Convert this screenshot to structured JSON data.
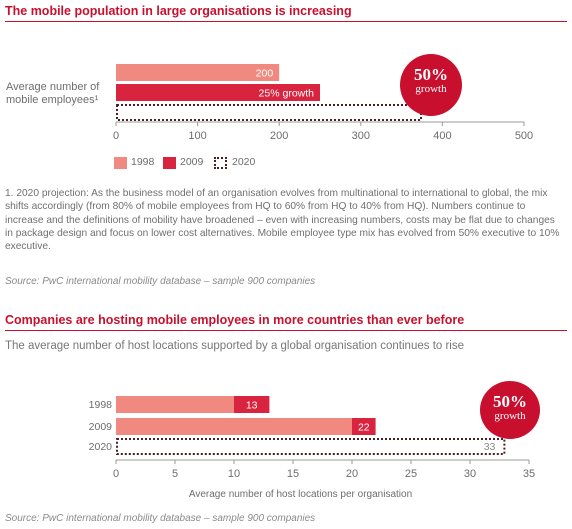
{
  "section1": {
    "heading": "The mobile population in large organisations is increasing",
    "ylabel": "Average number of mobile employees¹",
    "badge_big": "50%",
    "badge_small": "growth",
    "footnote": "1. 2020 projection: As the business model of an organisation evolves from multinational to international to global, the mix shifts accordingly (from 80% of mobile employees from HQ to 60% from HQ to 40% from HQ). Numbers continue to increase and the definitions of mobility have broadened – even with increasing numbers, costs may be flat due to changes in package design and focus on lower cost alternatives. Mobile employee type mix has evolved from 50% executive to 10% executive.",
    "source": "Source: PwC international mobility database – sample 900 companies"
  },
  "section2": {
    "heading": "Companies are hosting mobile employees in more countries than ever before",
    "subtitle": "The average number of host locations supported by a global organisation continues to rise",
    "badge_big": "50%",
    "badge_small": "growth",
    "source": "Source: PwC international mobility database – sample 900 companies"
  },
  "colors": {
    "accent": "#c8102e",
    "y1998": "#f08a80",
    "y2009": "#d9243f",
    "y2020_border": "#4a2020"
  },
  "chart_data": [
    {
      "type": "bar",
      "orientation": "horizontal",
      "series": [
        {
          "name": "1998",
          "value": 200,
          "label": "200"
        },
        {
          "name": "2009",
          "value": 250,
          "label": "25% growth"
        },
        {
          "name": "2020",
          "value": 375,
          "label": ""
        }
      ],
      "xlim": [
        0,
        500
      ],
      "xticks": [
        "0",
        "100",
        "200",
        "300",
        "400",
        "500"
      ],
      "legend": [
        "1998",
        "2009",
        "2020"
      ],
      "legend_position": "bottom-left"
    },
    {
      "type": "bar",
      "orientation": "horizontal",
      "bars": [
        {
          "category": "1998",
          "segments": [
            {
              "value": 10,
              "label": ""
            },
            {
              "value": 3,
              "label": "13"
            }
          ]
        },
        {
          "category": "2009",
          "segments": [
            {
              "value": 20,
              "label": ""
            },
            {
              "value": 2,
              "label": "22"
            }
          ]
        },
        {
          "category": "2020",
          "segments": [
            {
              "value": 33,
              "label": "33"
            }
          ]
        }
      ],
      "xlim": [
        0,
        35
      ],
      "xticks": [
        "0",
        "5",
        "10",
        "15",
        "20",
        "25",
        "30",
        "35"
      ],
      "xlabel": "Average number of host locations per organisation"
    }
  ]
}
